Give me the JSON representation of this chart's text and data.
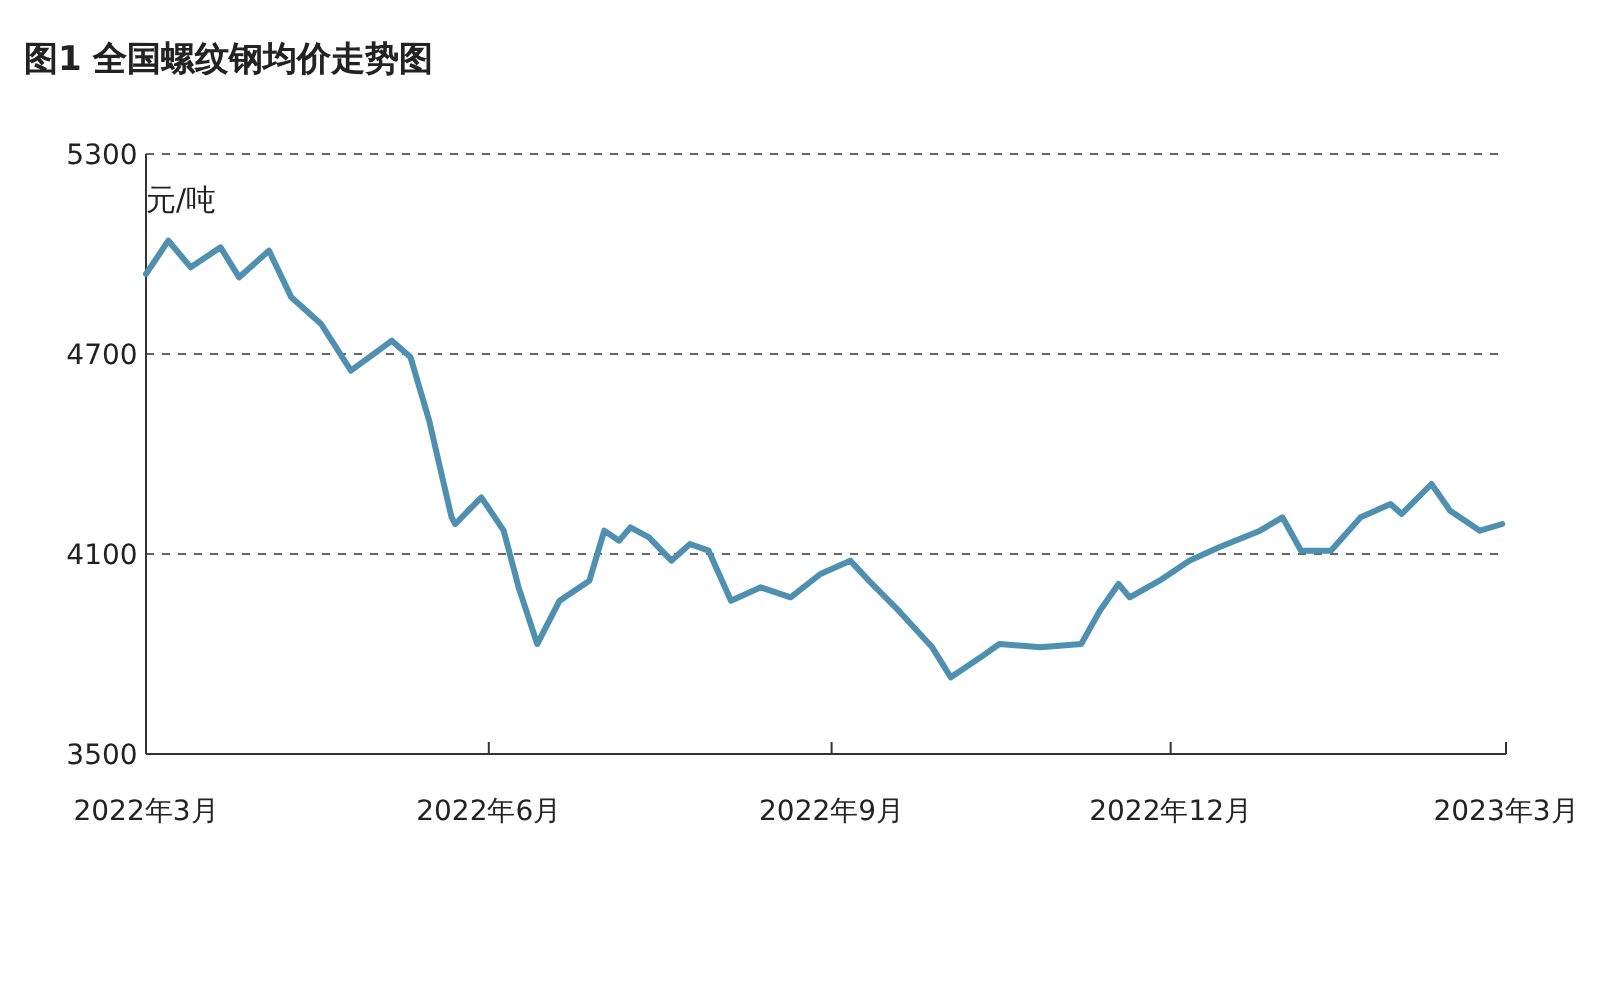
{
  "chart_data": {
    "type": "line",
    "title": "图1 全国螺纹钢均价走势图",
    "ylabel": "元/吨",
    "x": [
      "2022-03-01",
      "2022-03-07",
      "2022-03-13",
      "2022-03-21",
      "2022-03-26",
      "2022-04-03",
      "2022-04-09",
      "2022-04-17",
      "2022-04-25",
      "2022-05-06",
      "2022-05-11",
      "2022-05-16",
      "2022-05-22",
      "2022-05-23",
      "2022-05-30",
      "2022-06-05",
      "2022-06-09",
      "2022-06-14",
      "2022-06-20",
      "2022-06-28",
      "2022-07-02",
      "2022-07-06",
      "2022-07-09",
      "2022-07-14",
      "2022-07-20",
      "2022-07-25",
      "2022-07-30",
      "2022-08-05",
      "2022-08-13",
      "2022-08-21",
      "2022-08-29",
      "2022-09-06",
      "2022-09-11",
      "2022-09-19",
      "2022-09-28",
      "2022-10-03",
      "2022-10-11",
      "2022-10-16",
      "2022-10-27",
      "2022-11-07",
      "2022-11-12",
      "2022-11-17",
      "2022-11-20",
      "2022-11-28",
      "2022-12-06",
      "2022-12-14",
      "2022-12-25",
      "2022-12-31",
      "2023-01-05",
      "2023-01-13",
      "2023-01-21",
      "2023-01-29",
      "2023-02-01",
      "2023-02-09",
      "2023-02-14",
      "2023-02-22",
      "2023-02-28"
    ],
    "series": [
      {
        "color": "#4f8fb0",
        "values": [
          4940,
          5040,
          4960,
          5020,
          4930,
          5010,
          4870,
          4790,
          4650,
          4740,
          4690,
          4500,
          4210,
          4190,
          4270,
          4170,
          4000,
          3830,
          3960,
          4020,
          4170,
          4140,
          4180,
          4150,
          4080,
          4130,
          4110,
          3960,
          4000,
          3970,
          4040,
          4080,
          4020,
          3930,
          3820,
          3730,
          3790,
          3830,
          3820,
          3830,
          3930,
          4010,
          3970,
          4020,
          4080,
          4120,
          4170,
          4210,
          4110,
          4110,
          4210,
          4250,
          4220,
          4310,
          4230,
          4170,
          4190
        ]
      }
    ],
    "xlim": [
      "2022-03-01",
      "2023-03-01"
    ],
    "xticks": [
      {
        "value": "2022-03-01",
        "label": "2022年3月"
      },
      {
        "value": "2022-06-01",
        "label": "2022年6月"
      },
      {
        "value": "2022-09-01",
        "label": "2022年9月"
      },
      {
        "value": "2022-12-01",
        "label": "2022年12月"
      },
      {
        "value": "2023-03-01",
        "label": "2023年3月"
      }
    ],
    "ylim": [
      3500,
      5300
    ],
    "yticks": [
      3500,
      4100,
      4700,
      5300
    ],
    "grid": "y",
    "line_style": "solid",
    "marker": "none"
  }
}
